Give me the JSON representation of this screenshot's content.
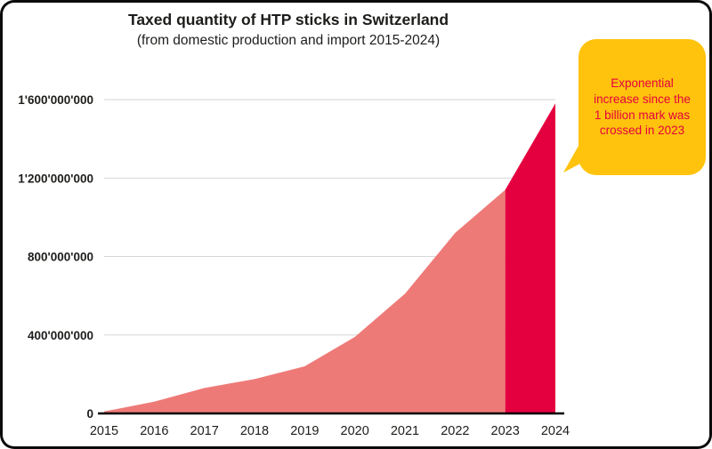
{
  "chart_data": {
    "type": "area",
    "title": "Taxed quantity of HTP sticks in Switzerland",
    "subtitle": "(from domestic production and import 2015-2024)",
    "x": [
      2015,
      2016,
      2017,
      2018,
      2019,
      2020,
      2021,
      2022,
      2023,
      2024
    ],
    "values": [
      10000000,
      60000000,
      130000000,
      175000000,
      240000000,
      390000000,
      610000000,
      920000000,
      1140000000,
      1580000000
    ],
    "ylim": [
      0,
      1600000000
    ],
    "yticks": [
      {
        "value": 0,
        "label": "0"
      },
      {
        "value": 400000000,
        "label": "400'000'000"
      },
      {
        "value": 800000000,
        "label": "800'000'000"
      },
      {
        "value": 1200000000,
        "label": "1'200'000'000"
      },
      {
        "value": 1600000000,
        "label": "1'600'000'000"
      }
    ],
    "highlight_start_index": 8,
    "area_color": "#ee7a78",
    "highlight_color": "#e4003f",
    "grid": true,
    "grid_color": "#d6d6d6",
    "axis_color": "#000000",
    "text_color": "#1d1d1b",
    "legend": "none"
  },
  "callout": {
    "text": "Exponential increase since the 1 billion mark was crossed in 2023",
    "bg_color": "#ffc30d",
    "text_color": "#e4003f"
  }
}
